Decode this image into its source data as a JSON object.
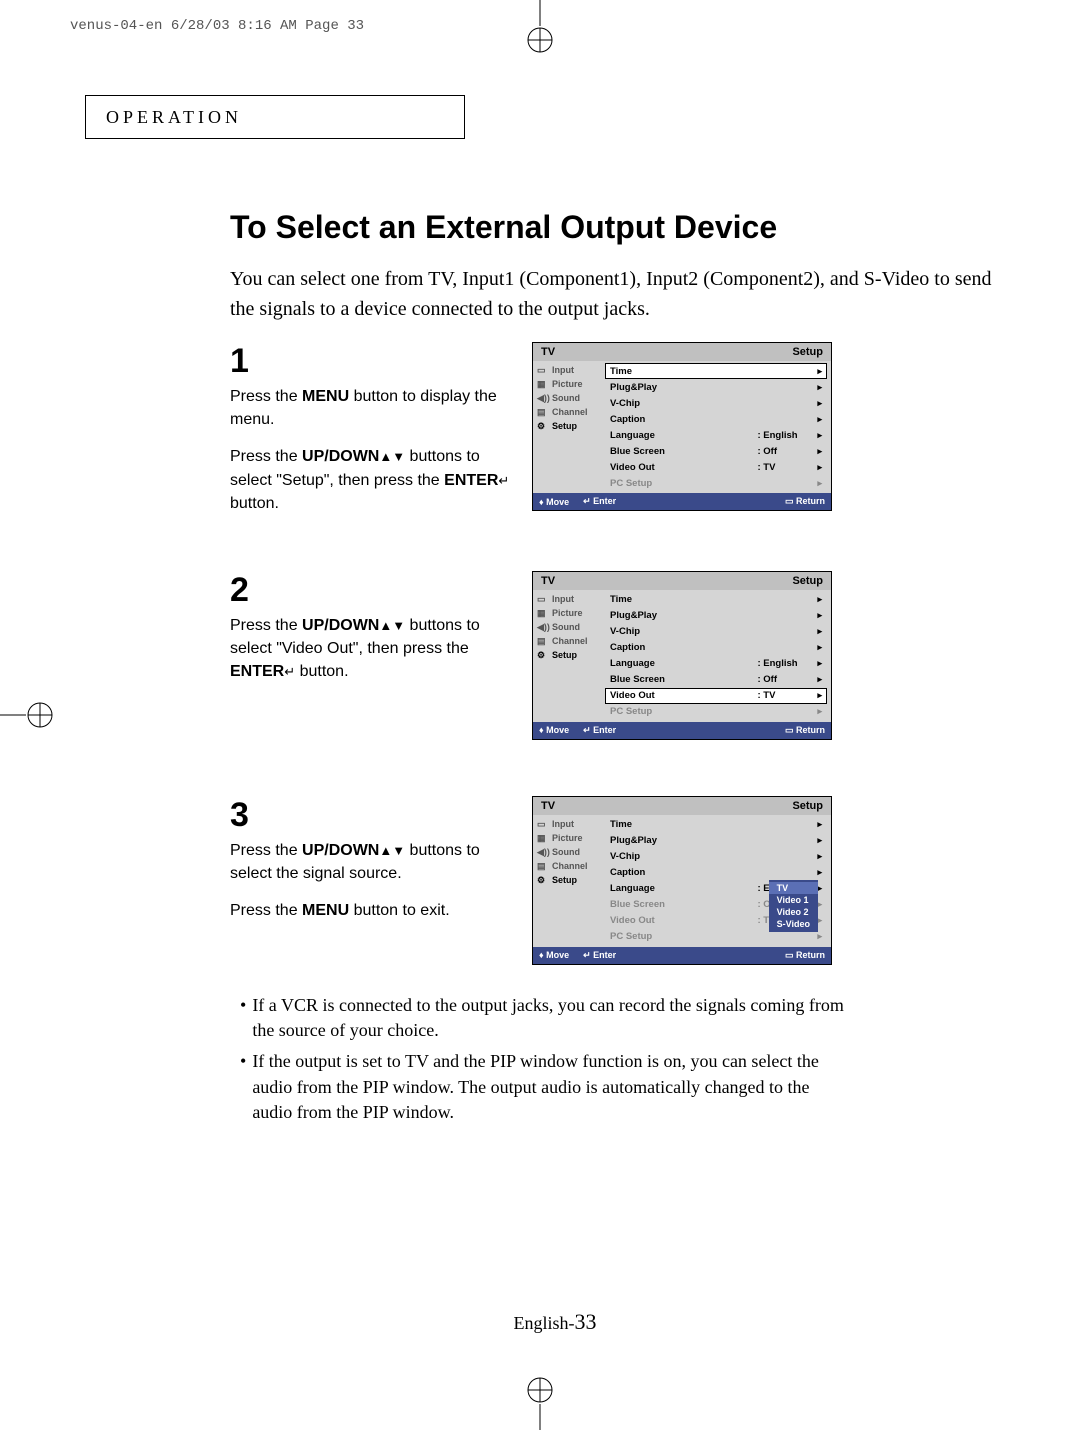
{
  "print_header": "venus-04-en  6/28/03 8:16 AM  Page 33",
  "section_tab": "OPERATION",
  "title": "To Select an External Output Device",
  "intro": "You can select one from TV, Input1 (Component1), Input2 (Component2), and S-Video to send the signals to a device connected to the output jacks.",
  "steps": {
    "s1": {
      "num": "1",
      "p1a": "Press the ",
      "p1b": "MENU",
      "p1c": " button to display the menu.",
      "p2a": "Press the ",
      "p2b": "UP/DOWN",
      "p2c": " buttons to select \"Setup\", then press the ",
      "p2d": "ENTER",
      "p2e": " button."
    },
    "s2": {
      "num": "2",
      "p1a": "Press the ",
      "p1b": "UP/DOWN",
      "p1c": " buttons to select \"Video Out\", then press the ",
      "p1d": "ENTER",
      "p1e": " button."
    },
    "s3": {
      "num": "3",
      "p1a": "Press the ",
      "p1b": "UP/DOWN",
      "p1c": " buttons to select the signal source.",
      "p2a": "Press the ",
      "p2b": "MENU",
      "p2c": " button to exit."
    }
  },
  "osd": {
    "title_left": "TV",
    "title_right": "Setup",
    "sidebar": [
      {
        "label": "Input"
      },
      {
        "label": "Picture"
      },
      {
        "label": "Sound"
      },
      {
        "label": "Channel"
      },
      {
        "label": "Setup"
      }
    ],
    "rows": {
      "time": {
        "label": "Time",
        "val": ""
      },
      "plugplay": {
        "label": "Plug&Play",
        "val": ""
      },
      "vchip": {
        "label": "V-Chip",
        "val": ""
      },
      "caption": {
        "label": "Caption",
        "val": ""
      },
      "language": {
        "label": "Language",
        "val": ": English"
      },
      "bluescreen": {
        "label": "Blue Screen",
        "val": ": Off"
      },
      "videoout": {
        "label": "Video Out",
        "val": ": TV"
      },
      "pcsetup": {
        "label": "PC Setup",
        "val": ""
      }
    },
    "footer": {
      "move": "Move",
      "enter": "Enter",
      "return": "Return"
    },
    "popup": [
      "TV",
      "Video 1",
      "Video 2",
      "S-Video"
    ]
  },
  "notes": {
    "n1": "If a VCR is connected to the output jacks, you can record the signals coming from the source of your choice.",
    "n2": "If the output is set to TV and the PIP window function is on, you can select the audio from the PIP window. The output audio is automatically changed to the audio from the PIP window."
  },
  "page_lang": "English-",
  "page_no": "33",
  "colors": {
    "osd_bg": "#d5d5d5",
    "osd_footer": "#3a4a8a",
    "popup_sel": "#5b6fb5"
  }
}
